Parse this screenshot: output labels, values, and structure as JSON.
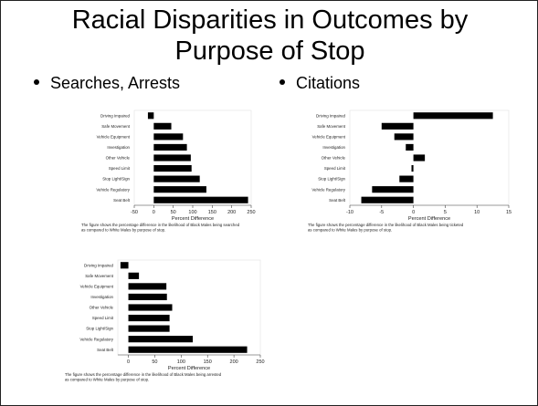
{
  "slide": {
    "title_line1": "Racial Disparities in Outcomes by",
    "title_line2": "Purpose of Stop",
    "bullets": [
      "Searches, Arrests",
      "Citations"
    ]
  },
  "chart_data": [
    {
      "type": "bar",
      "orientation": "horizontal",
      "categories": [
        "Driving Impaired",
        "Safe Movement",
        "Vehicle Equipment",
        "Investigation",
        "Other Vehicle",
        "Speed Limit",
        "Stop Light/Sign",
        "Vehicle Regulatory",
        "Seat Belt"
      ],
      "values": [
        -15,
        45,
        75,
        85,
        95,
        97,
        118,
        135,
        242
      ],
      "xlim": [
        -50,
        250
      ],
      "xticks": [
        -50,
        0,
        50,
        100,
        150,
        200,
        250
      ],
      "xlabel": "Percent Difference",
      "caption": [
        "The figure shows the percentage difference in the likelihood of Black Males being searched",
        "as compared to White Males by purpose of stop."
      ]
    },
    {
      "type": "bar",
      "orientation": "horizontal",
      "categories": [
        "Driving Impaired",
        "Safe Movement",
        "Vehicle Equipment",
        "Investigation",
        "Other Vehicle",
        "Speed Limit",
        "Stop Light/Sign",
        "Vehicle Regulatory",
        "Seat Belt"
      ],
      "values": [
        12.5,
        -5,
        -3,
        -1.2,
        1.8,
        -0.3,
        -2.2,
        -6.5,
        -8.2
      ],
      "xlim": [
        -10,
        15
      ],
      "xticks": [
        -10,
        -5,
        0,
        5,
        10,
        15
      ],
      "xlabel": "Percent Difference",
      "caption": [
        "The figure shows the percentage difference in the likelihood of Black Males being ticketed",
        "as compared to White Males by purpose of stop."
      ]
    },
    {
      "type": "bar",
      "orientation": "horizontal",
      "categories": [
        "Driving Impaired",
        "Safe Movement",
        "Vehicle Equipment",
        "Investigation",
        "Other Vehicle",
        "Speed Limit",
        "Stop Light/Sign",
        "Vehicle Regulatory",
        "Seat Belt"
      ],
      "values": [
        -15,
        20,
        72,
        73,
        83,
        78,
        78,
        122,
        225
      ],
      "xlim": [
        -20,
        250
      ],
      "xticks": [
        0,
        50,
        100,
        150,
        200,
        250
      ],
      "xlabel": "Percent Difference",
      "caption": [
        "The figure shows the percentage difference in the likelihood of Black Males being arrested",
        "as compared to White Males by purpose of stop."
      ]
    }
  ]
}
